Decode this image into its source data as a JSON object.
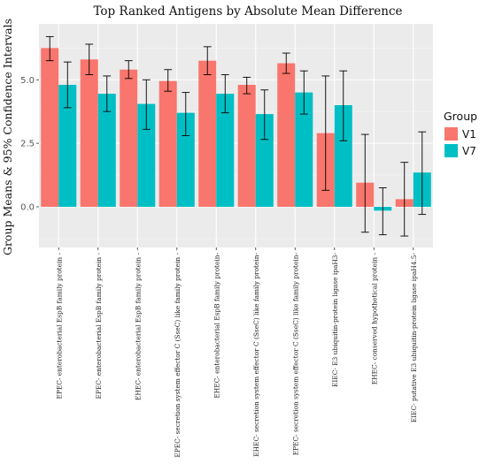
{
  "chart_data": {
    "type": "bar",
    "title": "Top Ranked Antigens by Absolute Mean Difference",
    "xlabel": "",
    "ylabel": "Group Means & 95% Confidence Intervals",
    "ylim": [
      -1.6,
      7.2
    ],
    "yticks": [
      "0.0",
      "2.5",
      "5.0"
    ],
    "grid": true,
    "legend_position": "right",
    "legend_title": "Group",
    "categories": [
      "EPEC- enterobacterial EspB family protein -",
      "EPEC- enterobacterial EspB family protein -",
      "EHEC- enterobacterial EspB family protein -",
      "EPEC- secretion system effector C (SseC) like family protein -",
      "EHEC- enterobacterial EspB family protein-",
      "EHEC- secretion system effector C (SseC) like family protein-",
      "EPEC- secretion system effector C (SseC) like family protein-",
      "EIEC- E3 ubiquitin-protein ligase ipaH3-",
      "EHEC- conserved hypothetical protein -",
      "EIEC- putative E3 ubiquitin-protein ligase ipaH4.5-"
    ],
    "series": [
      {
        "name": "V1",
        "color": "#F8766D",
        "values": [
          6.25,
          5.8,
          5.4,
          4.95,
          5.75,
          4.8,
          5.65,
          2.9,
          0.95,
          0.3
        ],
        "ci_low": [
          5.75,
          5.2,
          5.05,
          4.55,
          5.2,
          4.45,
          5.25,
          0.65,
          -1.0,
          -1.15
        ],
        "ci_high": [
          6.7,
          6.4,
          5.75,
          5.4,
          6.3,
          5.1,
          6.05,
          5.15,
          2.85,
          1.75
        ]
      },
      {
        "name": "V7",
        "color": "#00BFC4",
        "values": [
          4.8,
          4.45,
          4.05,
          3.7,
          4.45,
          3.65,
          4.5,
          4.0,
          -0.15,
          1.35
        ],
        "ci_low": [
          3.9,
          3.75,
          3.05,
          2.8,
          3.7,
          2.65,
          3.65,
          2.6,
          -1.1,
          -0.3
        ],
        "ci_high": [
          5.7,
          5.15,
          5.0,
          4.5,
          5.2,
          4.6,
          5.35,
          5.35,
          0.75,
          2.95
        ]
      }
    ]
  }
}
